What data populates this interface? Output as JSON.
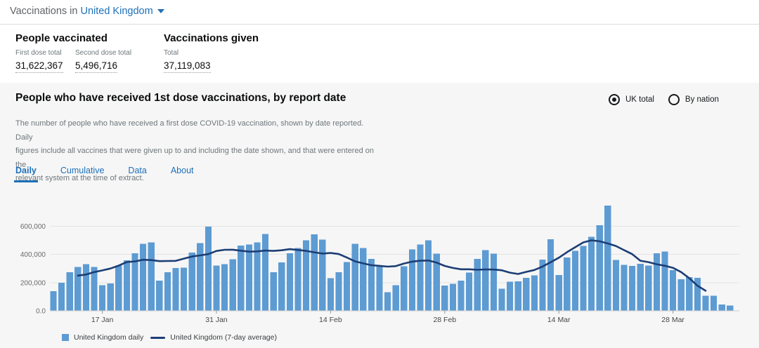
{
  "header": {
    "prefix": "Vaccinations in",
    "location": "United Kingdom"
  },
  "stats": {
    "people": {
      "title": "People vaccinated",
      "items": [
        {
          "label": "First dose total",
          "value": "31,622,367"
        },
        {
          "label": "Second dose total",
          "value": "5,496,716"
        }
      ]
    },
    "given": {
      "title": "Vaccinations given",
      "items": [
        {
          "label": "Total",
          "value": "37,119,083"
        }
      ]
    }
  },
  "panel": {
    "title": "People who have received 1st dose vaccinations, by report date",
    "description": "The number of people who have received a first dose COVID-19 vaccination, shown by date reported. Daily\nfigures include all vaccines that were given up to and including the date shown, and that were entered on the\nrelevant system at the time of extract.",
    "radios": [
      {
        "label": "UK total",
        "selected": true
      },
      {
        "label": "By nation",
        "selected": false
      }
    ],
    "tabs": [
      {
        "label": "Daily",
        "active": true
      },
      {
        "label": "Cumulative",
        "active": false
      },
      {
        "label": "Data",
        "active": false
      },
      {
        "label": "About",
        "active": false
      }
    ]
  },
  "colors": {
    "accent_blue": "#1d70b8",
    "bar": "#5d9bd3",
    "average_line": "#1c3e74",
    "panel_bg": "#f6f6f6",
    "gridline": "#e4e4e4",
    "axis_line": "#cfcfcf",
    "tick": "#9a9a9a",
    "y_label": "#6b6b6b",
    "x_label": "#474747"
  },
  "chart_data": {
    "type": "bar",
    "title": "People who have received 1st dose vaccinations, by report date",
    "xlabel": "",
    "ylabel": "",
    "ylim": [
      0,
      760000
    ],
    "grid": "horizontal",
    "legend_position": "bottom-left",
    "yticks": [
      "0.0",
      "200,000",
      "400,000",
      "600,000"
    ],
    "ytick_values": [
      0,
      200000,
      400000,
      600000
    ],
    "xticks": [
      "17 Jan",
      "31 Jan",
      "14 Feb",
      "28 Feb",
      "14 Mar",
      "28 Mar"
    ],
    "x": [
      "11 Jan",
      "12 Jan",
      "13 Jan",
      "14 Jan",
      "15 Jan",
      "16 Jan",
      "17 Jan",
      "18 Jan",
      "19 Jan",
      "20 Jan",
      "21 Jan",
      "22 Jan",
      "23 Jan",
      "24 Jan",
      "25 Jan",
      "26 Jan",
      "27 Jan",
      "28 Jan",
      "29 Jan",
      "30 Jan",
      "31 Jan",
      "1 Feb",
      "2 Feb",
      "3 Feb",
      "4 Feb",
      "5 Feb",
      "6 Feb",
      "7 Feb",
      "8 Feb",
      "9 Feb",
      "10 Feb",
      "11 Feb",
      "12 Feb",
      "13 Feb",
      "14 Feb",
      "15 Feb",
      "16 Feb",
      "17 Feb",
      "18 Feb",
      "19 Feb",
      "20 Feb",
      "21 Feb",
      "22 Feb",
      "23 Feb",
      "24 Feb",
      "25 Feb",
      "26 Feb",
      "27 Feb",
      "28 Feb",
      "1 Mar",
      "2 Mar",
      "3 Mar",
      "4 Mar",
      "5 Mar",
      "6 Mar",
      "7 Mar",
      "8 Mar",
      "9 Mar",
      "10 Mar",
      "11 Mar",
      "12 Mar",
      "13 Mar",
      "14 Mar",
      "15 Mar",
      "16 Mar",
      "17 Mar",
      "18 Mar",
      "19 Mar",
      "20 Mar",
      "21 Mar",
      "22 Mar",
      "23 Mar",
      "24 Mar",
      "25 Mar",
      "26 Mar",
      "27 Mar",
      "28 Mar",
      "29 Mar",
      "30 Mar",
      "31 Mar",
      "1 Apr",
      "2 Apr",
      "3 Apr",
      "4 Apr"
    ],
    "series": [
      {
        "name": "United Kingdom daily",
        "type": "bar",
        "color": "#5d9bd3",
        "values": [
          140000,
          200000,
          273000,
          312000,
          332000,
          310000,
          181000,
          193000,
          320000,
          357000,
          408000,
          474000,
          486000,
          215000,
          274000,
          304000,
          305000,
          413000,
          481000,
          598000,
          321000,
          330000,
          366000,
          463000,
          471000,
          486000,
          546000,
          274000,
          344000,
          408000,
          446000,
          500000,
          542000,
          504000,
          231000,
          273000,
          347000,
          476000,
          446000,
          367000,
          314000,
          132000,
          182000,
          317000,
          436000,
          469000,
          499000,
          405000,
          178000,
          192000,
          215000,
          271000,
          369000,
          430000,
          405000,
          157000,
          207000,
          210000,
          235000,
          251000,
          364000,
          508000,
          253000,
          377000,
          425000,
          459000,
          526000,
          607000,
          747000,
          360000,
          326000,
          319000,
          334000,
          321000,
          408000,
          420000,
          289000,
          223000,
          240000,
          235000,
          107000,
          107000,
          45000,
          38000
        ]
      },
      {
        "name": "United Kingdom (7-day average)",
        "type": "line",
        "color": "#1c3e74",
        "derived": "7-day centered moving average of the daily series"
      }
    ]
  }
}
